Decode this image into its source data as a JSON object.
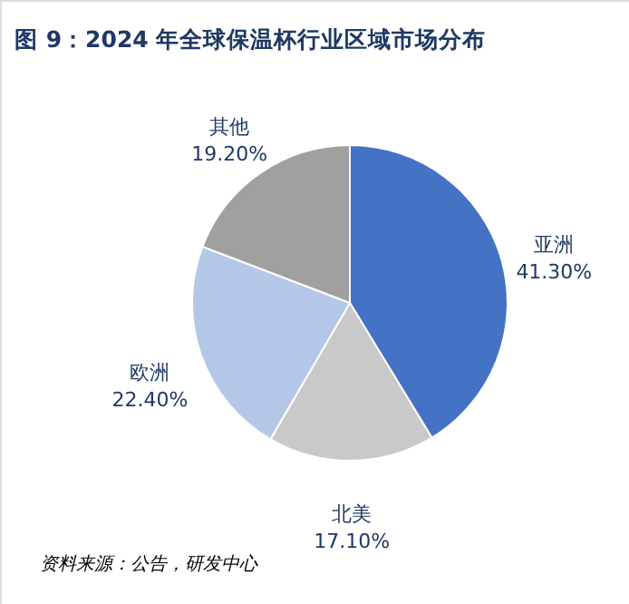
{
  "chart_data": {
    "type": "pie",
    "title": "图 9：2024 年全球保温杯行业区域市场分布",
    "categories": [
      "亚洲",
      "北美",
      "欧洲",
      "其他"
    ],
    "values": [
      41.3,
      17.1,
      22.4,
      19.2
    ],
    "value_labels": [
      "41.30%",
      "17.10%",
      "22.40%",
      "19.20%"
    ],
    "colors": [
      "#4472c4",
      "#c9c9c9",
      "#b4c7e7",
      "#a0a0a0"
    ],
    "annotations": [
      "资料来源：公告，研发中心"
    ]
  }
}
